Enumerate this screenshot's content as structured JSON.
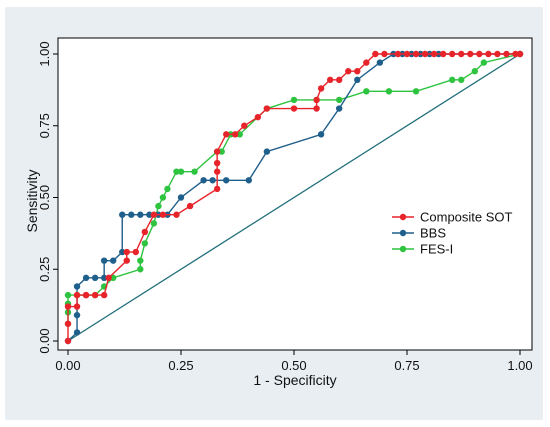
{
  "chart_data": {
    "type": "line",
    "xlabel": "1 - Specificity",
    "ylabel": "Sensitivity",
    "xlim": [
      0,
      1
    ],
    "ylim": [
      0,
      1
    ],
    "x_ticks": [
      "0.00",
      "0.25",
      "0.50",
      "0.75",
      "1.00"
    ],
    "y_ticks": [
      "0.00",
      "0.25",
      "0.50",
      "0.75",
      "1.00"
    ],
    "x_tick_values": [
      0,
      0.25,
      0.5,
      0.75,
      1
    ],
    "y_tick_values": [
      0,
      0.25,
      0.5,
      0.75,
      1
    ],
    "grid": false,
    "legend_position": "right",
    "reference_line": {
      "x": [
        0,
        1
      ],
      "y": [
        0,
        1
      ],
      "color": "#1f6e7a"
    },
    "series": [
      {
        "name": "Composite SOT",
        "color": "#e8242b",
        "x": [
          0,
          0,
          0,
          0.02,
          0.02,
          0.04,
          0.04,
          0.06,
          0.08,
          0.09,
          0.13,
          0.13,
          0.15,
          0.17,
          0.19,
          0.21,
          0.24,
          0.27,
          0.33,
          0.33,
          0.33,
          0.33,
          0.35,
          0.37,
          0.39,
          0.42,
          0.44,
          0.5,
          0.55,
          0.55,
          0.56,
          0.58,
          0.6,
          0.62,
          0.64,
          0.66,
          0.68,
          0.7,
          0.73,
          0.75,
          0.77,
          0.79,
          0.81,
          0.83,
          0.85,
          0.87,
          0.89,
          0.91,
          0.93,
          0.95,
          0.97,
          0.99,
          1
        ],
        "y": [
          0,
          0.06,
          0.12,
          0.12,
          0.16,
          0.16,
          0.16,
          0.16,
          0.16,
          0.22,
          0.28,
          0.31,
          0.31,
          0.38,
          0.44,
          0.44,
          0.44,
          0.47,
          0.53,
          0.59,
          0.62,
          0.66,
          0.72,
          0.72,
          0.75,
          0.78,
          0.81,
          0.81,
          0.81,
          0.84,
          0.88,
          0.91,
          0.91,
          0.94,
          0.94,
          0.97,
          1,
          1,
          1,
          1,
          1,
          1,
          1,
          1,
          1,
          1,
          1,
          1,
          1,
          1,
          1,
          1,
          1
        ]
      },
      {
        "name": "BBS",
        "color": "#1f5f8b",
        "x": [
          0,
          0.02,
          0.02,
          0.02,
          0.04,
          0.06,
          0.08,
          0.08,
          0.1,
          0.12,
          0.12,
          0.14,
          0.16,
          0.18,
          0.2,
          0.22,
          0.25,
          0.3,
          0.32,
          0.35,
          0.4,
          0.44,
          0.56,
          0.6,
          0.64,
          0.69,
          0.72,
          0.74,
          0.76,
          0.78,
          0.8,
          0.82,
          1
        ],
        "y": [
          0,
          0.03,
          0.09,
          0.19,
          0.22,
          0.22,
          0.22,
          0.28,
          0.28,
          0.31,
          0.44,
          0.44,
          0.44,
          0.44,
          0.44,
          0.44,
          0.5,
          0.56,
          0.56,
          0.56,
          0.56,
          0.66,
          0.72,
          0.81,
          0.91,
          0.97,
          1,
          1,
          1,
          1,
          1,
          1,
          1
        ]
      },
      {
        "name": "FES-I",
        "color": "#2ec440",
        "x": [
          0,
          0,
          0,
          0,
          0.02,
          0.06,
          0.08,
          0.1,
          0.16,
          0.16,
          0.17,
          0.19,
          0.2,
          0.21,
          0.22,
          0.24,
          0.25,
          0.28,
          0.33,
          0.34,
          0.36,
          0.38,
          0.44,
          0.5,
          0.55,
          0.6,
          0.66,
          0.71,
          0.77,
          0.85,
          0.87,
          0.9,
          0.92,
          1
        ],
        "y": [
          0.06,
          0.1,
          0.13,
          0.16,
          0.16,
          0.16,
          0.19,
          0.22,
          0.25,
          0.28,
          0.34,
          0.41,
          0.47,
          0.5,
          0.53,
          0.59,
          0.59,
          0.59,
          0.66,
          0.66,
          0.72,
          0.72,
          0.81,
          0.84,
          0.84,
          0.84,
          0.87,
          0.87,
          0.87,
          0.91,
          0.91,
          0.94,
          0.97,
          1
        ]
      }
    ]
  }
}
